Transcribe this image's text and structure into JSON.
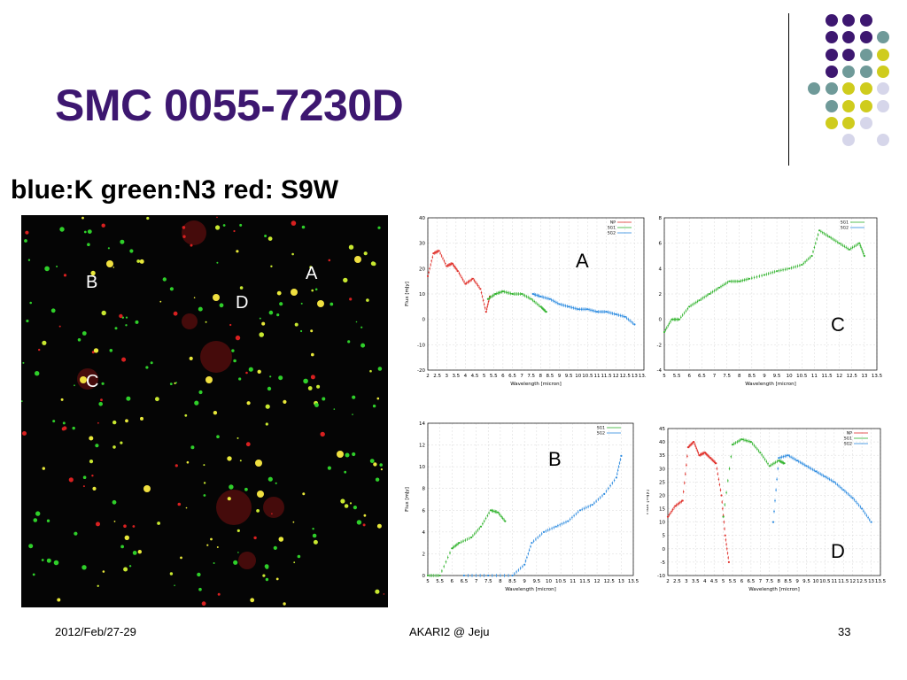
{
  "slide": {
    "title": "SMC 0055-7230D",
    "caption": "blue:K green:N3 red: S9W",
    "footer_date": "2012/Feb/27-29",
    "footer_center": "AKARI2 @ Jeju",
    "slide_number": "33"
  },
  "image_labels": [
    "A",
    "B",
    "C",
    "D"
  ],
  "plot_labels": [
    "A",
    "C",
    "B",
    "D"
  ],
  "colors": {
    "title": "#3d1770",
    "dot_purple": "#3d1770",
    "dot_teal": "#6f9a99",
    "dot_yellow": "#cfcc1d",
    "dot_lavender": "#d6d6ea",
    "series_np": "#e0302a",
    "series_sg1": "#31b32d",
    "series_sg2": "#2a8ae0"
  },
  "chart_data": [
    {
      "type": "scatter",
      "panel": "A",
      "xlabel": "Wavelength [micron]",
      "ylabel": "Flux [mJy]",
      "xlim": [
        2,
        13.5
      ],
      "ylim": [
        -20,
        40
      ],
      "xticks": [
        "2",
        "2.5",
        "3",
        "3.5",
        "4",
        "4.5",
        "5",
        "5.5",
        "6",
        "6.5",
        "7",
        "7.5",
        "8",
        "8.5",
        "9",
        "9.5",
        "10",
        "10.5",
        "11",
        "11.5",
        "12",
        "12.5",
        "13",
        "13.5"
      ],
      "yticks": [
        "-20",
        "-10",
        "0",
        "10",
        "20",
        "30",
        "40"
      ],
      "legend": [
        "NP",
        "SG1",
        "SG2"
      ],
      "series": [
        {
          "name": "NP",
          "x": [
            2,
            2.3,
            2.6,
            3.0,
            3.3,
            3.6,
            4.0,
            4.4,
            4.8,
            5.1,
            5.3
          ],
          "y": [
            17,
            26,
            27,
            21,
            22,
            19,
            14,
            16,
            12,
            3,
            9
          ]
        },
        {
          "name": "SG1",
          "x": [
            5.2,
            5.6,
            6.0,
            6.5,
            7.0,
            7.5,
            8.0,
            8.3
          ],
          "y": [
            8,
            10,
            11,
            10,
            10,
            8,
            5,
            3
          ]
        },
        {
          "name": "SG2",
          "x": [
            7.6,
            8.0,
            8.5,
            9.0,
            9.5,
            10.0,
            10.5,
            11.0,
            11.5,
            12.0,
            12.5,
            13.0
          ],
          "y": [
            10,
            9,
            8,
            6,
            5,
            4,
            4,
            3,
            3,
            2,
            1,
            -2
          ]
        }
      ]
    },
    {
      "type": "scatter",
      "panel": "C",
      "xlabel": "Wavelength [micron]",
      "ylabel": "Flux [mJy]",
      "xlim": [
        5,
        13.5
      ],
      "ylim": [
        -4,
        8
      ],
      "xticks": [
        "5",
        "5.5",
        "6",
        "6.5",
        "7",
        "7.5",
        "8",
        "8.5",
        "9",
        "9.5",
        "10",
        "10.5",
        "11",
        "11.5",
        "12",
        "12.5",
        "13",
        "13.5"
      ],
      "yticks": [
        "-4",
        "-2",
        "0",
        "2",
        "4",
        "6",
        "8"
      ],
      "legend": [
        "SG1",
        "SG2"
      ],
      "series": [
        {
          "name": "SG1",
          "x": [
            5.0,
            5.3,
            5.6,
            6.0,
            6.4,
            6.8,
            7.2,
            7.6,
            8.0,
            8.4,
            9.0,
            9.5,
            10.0,
            10.5,
            10.9,
            11.2,
            11.6,
            12.0,
            12.4,
            12.8,
            13.0
          ],
          "y": [
            -1,
            0,
            0,
            1,
            1.5,
            2,
            2.5,
            3,
            3,
            3.2,
            3.5,
            3.8,
            4,
            4.3,
            5,
            7,
            6.5,
            6,
            5.5,
            6,
            5
          ]
        }
      ]
    },
    {
      "type": "scatter",
      "panel": "B",
      "xlabel": "Wavelength [micron]",
      "ylabel": "Flux [mJy]",
      "xlim": [
        5,
        13.5
      ],
      "ylim": [
        0,
        14
      ],
      "xticks": [
        "5",
        "5.5",
        "6",
        "6.5",
        "7",
        "7.5",
        "8",
        "8.5",
        "9",
        "9.5",
        "10",
        "10.5",
        "11",
        "11.5",
        "12",
        "12.5",
        "13",
        "13.5"
      ],
      "yticks": [
        "0",
        "2",
        "4",
        "6",
        "8",
        "10",
        "12",
        "14"
      ],
      "legend": [
        "SG1",
        "SG2"
      ],
      "series": [
        {
          "name": "SG1",
          "x": [
            5.0,
            5.5,
            6.0,
            6.3,
            6.8,
            7.2,
            7.6,
            7.9,
            8.2
          ],
          "y": [
            0,
            0,
            2.5,
            3,
            3.5,
            4.5,
            6,
            5.8,
            5
          ]
        },
        {
          "name": "SG2",
          "x": [
            6.5,
            7.5,
            8.5,
            9.0,
            9.3,
            9.8,
            10.3,
            10.8,
            11.3,
            11.8,
            12.3,
            12.8,
            13.0
          ],
          "y": [
            0,
            0,
            0,
            1,
            3,
            4,
            4.5,
            5,
            6,
            6.5,
            7.5,
            9,
            11
          ]
        }
      ]
    },
    {
      "type": "scatter",
      "panel": "D",
      "xlabel": "Wavelength [micron]",
      "ylabel": "Flux [mJy]",
      "xlim": [
        2,
        13.5
      ],
      "ylim": [
        -10,
        45
      ],
      "xticks": [
        "2",
        "2.5",
        "3",
        "3.5",
        "4",
        "4.5",
        "5",
        "5.5",
        "6",
        "6.5",
        "7",
        "7.5",
        "8",
        "8.5",
        "9",
        "9.5",
        "10",
        "10.5",
        "11",
        "11.5",
        "12",
        "12.5",
        "13",
        "13.5"
      ],
      "yticks": [
        "-10",
        "-5",
        "0",
        "5",
        "10",
        "15",
        "20",
        "25",
        "30",
        "35",
        "40",
        "45"
      ],
      "legend": [
        "NP",
        "SG1",
        "SG2"
      ],
      "series": [
        {
          "name": "NP",
          "x": [
            2.0,
            2.4,
            2.8,
            3.1,
            3.4,
            3.7,
            4.0,
            4.3,
            4.6,
            4.9,
            5.1,
            5.3
          ],
          "y": [
            12,
            16,
            18,
            38,
            40,
            35,
            36,
            34,
            32,
            20,
            5,
            -5
          ]
        },
        {
          "name": "SG1",
          "x": [
            5.0,
            5.5,
            6.0,
            6.5,
            7.0,
            7.5,
            8.0,
            8.3
          ],
          "y": [
            12,
            39,
            41,
            40,
            36,
            31,
            33,
            32
          ]
        },
        {
          "name": "SG2",
          "x": [
            7.7,
            8.0,
            8.5,
            9.0,
            9.5,
            10.0,
            10.5,
            11.0,
            11.5,
            12.0,
            12.5,
            13.0
          ],
          "y": [
            10,
            34,
            35,
            33,
            31,
            29,
            27,
            25,
            22,
            19,
            15,
            10
          ]
        }
      ]
    }
  ]
}
